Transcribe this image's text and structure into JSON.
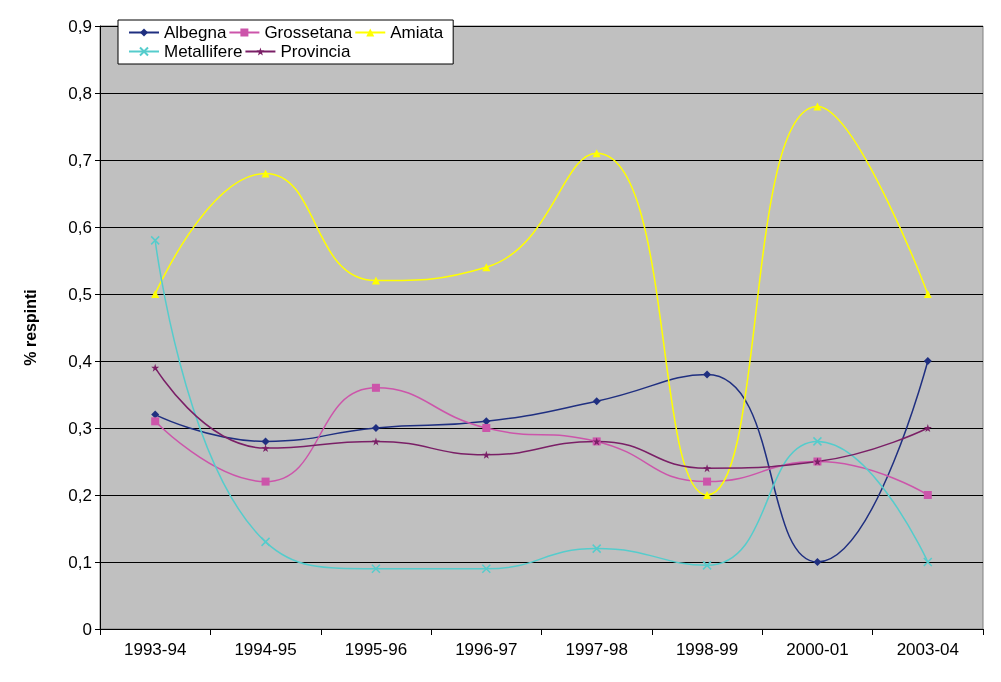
{
  "chart_data": {
    "type": "line",
    "ylabel": "% respinti",
    "categories": [
      "1993-94",
      "1994-95",
      "1995-96",
      "1996-97",
      "1997-98",
      "1998-99",
      "2000-01",
      "2003-04"
    ],
    "ylim": [
      0,
      0.9
    ],
    "yticks": [
      0,
      {
        "value": 0.1,
        "label": "0,1"
      },
      {
        "value": 0.2,
        "label": "0,2"
      },
      {
        "value": 0.3,
        "label": "0,3"
      },
      {
        "value": 0.4,
        "label": "0,4"
      },
      {
        "value": 0.5,
        "label": "0,5"
      },
      {
        "value": 0.6,
        "label": "0,6"
      },
      {
        "value": 0.7,
        "label": "0,7"
      },
      {
        "value": 0.8,
        "label": "0,8"
      },
      {
        "value": 0.9,
        "label": "0,9"
      }
    ],
    "grid": "y",
    "legend": "top left",
    "series": [
      {
        "name": "Albegna",
        "color": "#1f2f80",
        "marker": "diamond",
        "values": [
          0.32,
          0.28,
          0.3,
          0.31,
          0.34,
          0.38,
          0.1,
          0.4
        ]
      },
      {
        "name": "Grossetana",
        "color": "#cc55aa",
        "marker": "square",
        "values": [
          0.31,
          0.22,
          0.36,
          0.3,
          0.28,
          0.22,
          0.25,
          0.2
        ]
      },
      {
        "name": "Amiata",
        "color": "#ffff00",
        "marker": "triangle",
        "values": [
          0.5,
          0.68,
          0.52,
          0.54,
          0.71,
          0.2,
          0.78,
          0.5
        ]
      },
      {
        "name": "Metallifere",
        "color": "#55cccc",
        "marker": "cross",
        "values": [
          0.58,
          0.13,
          0.09,
          0.09,
          0.12,
          0.095,
          0.28,
          0.1
        ]
      },
      {
        "name": "Provincia",
        "color": "#7a1f66",
        "marker": "star",
        "values": [
          0.39,
          0.27,
          0.28,
          0.26,
          0.28,
          0.24,
          0.25,
          0.3
        ]
      }
    ]
  }
}
